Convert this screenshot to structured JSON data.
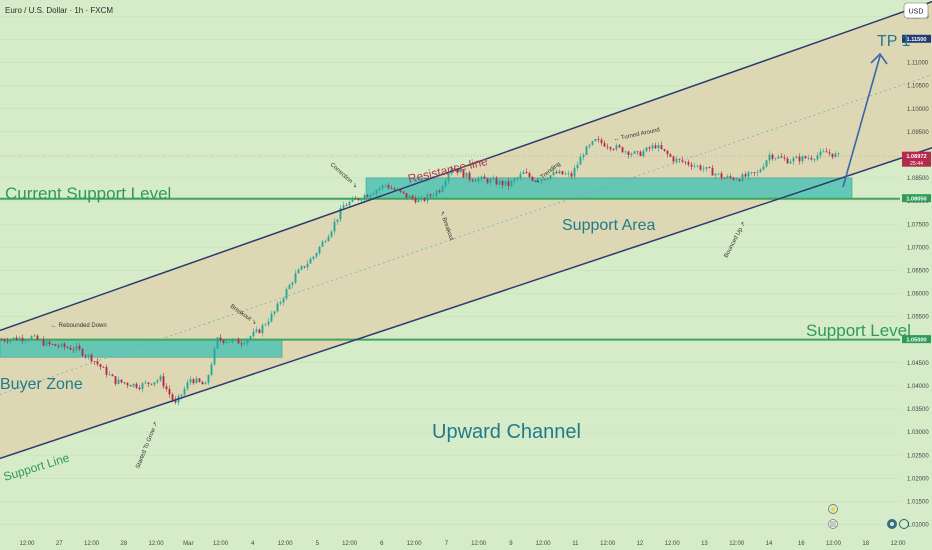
{
  "header": {
    "symbol_title": "Euro / U.S. Dollar · 1h · FXCM",
    "currency": "USD"
  },
  "colors": {
    "background": "#d6ecc8",
    "channel_line": "#2e3a6e",
    "channel_fill": "#e4c9a2",
    "zone_fill": "#4fc3b3",
    "level_line": "#3ea55b",
    "level_text": "#2f9a57",
    "title_text": "#217a8c",
    "candle_up": "#26a69a",
    "candle_down": "#b5294b",
    "tp_arrow": "#3a67a8"
  },
  "chart_data": {
    "type": "candlestick",
    "title": "Euro / U.S. Dollar · 1h · FXCM",
    "y_axis": {
      "currency": "USD",
      "range": [
        1.0075,
        1.1235
      ],
      "tick_labels": [
        "1.12000",
        "1.11500",
        "1.11000",
        "1.10500",
        "1.10000",
        "1.09500",
        "1.09000",
        "1.08500",
        "1.08000",
        "1.07500",
        "1.07000",
        "1.06500",
        "1.06000",
        "1.05500",
        "1.05000",
        "1.04500",
        "1.04000",
        "1.03500",
        "1.03000",
        "1.02500",
        "1.02000",
        "1.01500",
        "1.01000"
      ],
      "tick_values": [
        1.12,
        1.115,
        1.11,
        1.105,
        1.1,
        1.095,
        1.09,
        1.085,
        1.08,
        1.075,
        1.07,
        1.065,
        1.06,
        1.055,
        1.05,
        1.045,
        1.04,
        1.035,
        1.03,
        1.025,
        1.02,
        1.015,
        1.01
      ]
    },
    "x_axis": {
      "tick_labels": [
        "12:00",
        "27",
        "12:00",
        "28",
        "12:00",
        "Mar",
        "12:00",
        "4",
        "12:00",
        "5",
        "12:00",
        "6",
        "12:00",
        "7",
        "12:00",
        "9",
        "12:00",
        "11",
        "12:00",
        "12",
        "12:00",
        "13",
        "12:00",
        "14",
        "16",
        "12:00",
        "18",
        "12:00"
      ]
    },
    "price_badges": [
      {
        "label": "1.11500",
        "value": 1.115,
        "style": "target"
      },
      {
        "label": "1.08972",
        "value": 1.0897,
        "style": "current",
        "sub": "25:44"
      },
      {
        "label": "1.08050",
        "value": 1.0805,
        "style": "level"
      },
      {
        "label": "1.05000",
        "value": 1.05,
        "style": "level"
      }
    ],
    "horizontal_levels": [
      {
        "name": "Current Support Level",
        "value": 1.0805
      },
      {
        "name": "Support Level",
        "value": 1.05
      }
    ],
    "zones": [
      {
        "name": "Buyer Zone",
        "from_index": 0,
        "to_index": 93,
        "low": 1.0462,
        "high": 1.05
      },
      {
        "name": "Support Area",
        "from_index": 122,
        "to_index": 283,
        "low": 1.0806,
        "high": 1.085
      }
    ],
    "channel": {
      "name": "Upward Channel",
      "lower_line": [
        [
          0,
          1.0243
        ],
        [
          300,
          1.0893
        ]
      ],
      "upper_line": [
        [
          0,
          1.052
        ],
        [
          300,
          1.1208
        ]
      ]
    },
    "close": {
      "start": 1.05,
      "points": [
        [
          0,
          1.05
        ],
        [
          10,
          1.0505
        ],
        [
          15,
          1.049
        ],
        [
          25,
          1.048
        ],
        [
          30,
          1.046
        ],
        [
          38,
          1.041
        ],
        [
          46,
          1.04
        ],
        [
          53,
          1.0415
        ],
        [
          58,
          1.036
        ],
        [
          63,
          1.0415
        ],
        [
          68,
          1.04
        ],
        [
          72,
          1.05
        ],
        [
          80,
          1.0495
        ],
        [
          86,
          1.052
        ],
        [
          91,
          1.056
        ],
        [
          98,
          1.064
        ],
        [
          104,
          1.068
        ],
        [
          110,
          1.074
        ],
        [
          114,
          1.079
        ],
        [
          122,
          1.0815
        ],
        [
          128,
          1.0835
        ],
        [
          135,
          1.081
        ],
        [
          140,
          1.08
        ],
        [
          146,
          1.0825
        ],
        [
          150,
          1.0875
        ],
        [
          156,
          1.085
        ],
        [
          162,
          1.0845
        ],
        [
          169,
          1.0835
        ],
        [
          174,
          1.086
        ],
        [
          178,
          1.0845
        ],
        [
          185,
          1.086
        ],
        [
          190,
          1.0855
        ],
        [
          194,
          1.0905
        ],
        [
          198,
          1.093
        ],
        [
          205,
          1.0915
        ],
        [
          212,
          1.09
        ],
        [
          218,
          1.092
        ],
        [
          224,
          1.089
        ],
        [
          230,
          1.088
        ],
        [
          236,
          1.0865
        ],
        [
          241,
          1.085
        ],
        [
          246,
          1.085
        ],
        [
          252,
          1.086
        ],
        [
          256,
          1.09
        ],
        [
          262,
          1.0888
        ],
        [
          270,
          1.0895
        ],
        [
          275,
          1.0905
        ],
        [
          279,
          1.0897
        ]
      ]
    },
    "annotations": [
      {
        "text": "Rebounded Down",
        "angle": 0
      },
      {
        "text": "Correction",
        "angle": 42
      },
      {
        "text": "Breakout",
        "angle": 35
      },
      {
        "text": "Breakout",
        "angle": 70
      },
      {
        "text": "Trending",
        "angle": -38
      },
      {
        "text": "Turned Around",
        "angle": -12
      },
      {
        "text": "Bounced Up",
        "angle": -62
      },
      {
        "text": "Started To Grow",
        "angle": -68
      }
    ],
    "labels": {
      "resistance": "Resistance line",
      "support_line": "Support Line",
      "tp": "TP 1",
      "channel_title": "Upward Channel",
      "buyer_zone": "Buyer Zone",
      "support_area": "Support Area",
      "current_support": "Current Support Level",
      "support_level": "Support Level"
    }
  }
}
